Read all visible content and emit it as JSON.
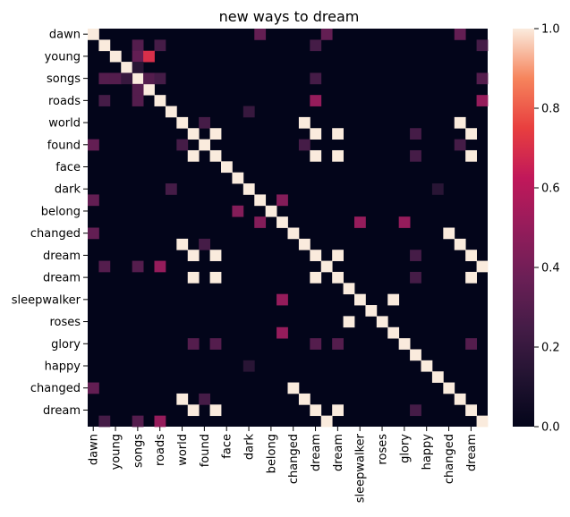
{
  "chart_data": {
    "type": "heatmap",
    "title": "new ways to dream",
    "labels": [
      "dawn",
      "",
      "young",
      "",
      "songs",
      "",
      "roads",
      "",
      "world",
      "",
      "found",
      "",
      "face",
      "",
      "dark",
      "",
      "belong",
      "",
      "changed",
      "",
      "dream",
      "",
      "dream",
      "",
      "sleepwalker",
      "",
      "roses",
      "",
      "glory",
      "",
      "happy",
      "",
      "changed",
      "",
      "dream",
      ""
    ],
    "tick_every": 2,
    "colorbar": {
      "min": 0.0,
      "max": 1.0,
      "ticks": [
        "0.0",
        "0.2",
        "0.4",
        "0.6",
        "0.8",
        "1.0"
      ]
    },
    "colormap": "rocket",
    "diagonal_value": 1.0,
    "cells": [
      [
        0,
        15,
        0.35
      ],
      [
        0,
        21,
        0.35
      ],
      [
        0,
        33,
        0.35
      ],
      [
        1,
        4,
        0.3
      ],
      [
        1,
        6,
        0.25
      ],
      [
        1,
        20,
        0.25
      ],
      [
        1,
        35,
        0.25
      ],
      [
        2,
        4,
        0.35
      ],
      [
        2,
        5,
        0.7
      ],
      [
        3,
        4,
        0.15
      ],
      [
        4,
        1,
        0.3
      ],
      [
        4,
        2,
        0.3
      ],
      [
        4,
        3,
        0.2
      ],
      [
        4,
        5,
        0.3
      ],
      [
        4,
        6,
        0.25
      ],
      [
        4,
        20,
        0.25
      ],
      [
        4,
        35,
        0.3
      ],
      [
        5,
        4,
        0.3
      ],
      [
        6,
        1,
        0.25
      ],
      [
        6,
        4,
        0.3
      ],
      [
        6,
        20,
        0.5
      ],
      [
        6,
        35,
        0.5
      ],
      [
        7,
        14,
        0.2
      ],
      [
        8,
        10,
        0.25
      ],
      [
        8,
        19,
        1.0
      ],
      [
        8,
        33,
        1.0
      ],
      [
        9,
        11,
        1.0
      ],
      [
        9,
        20,
        1.0
      ],
      [
        9,
        22,
        1.0
      ],
      [
        9,
        29,
        0.25
      ],
      [
        9,
        34,
        1.0
      ],
      [
        10,
        0,
        0.35
      ],
      [
        10,
        8,
        0.25
      ],
      [
        10,
        19,
        0.25
      ],
      [
        10,
        33,
        0.25
      ],
      [
        11,
        9,
        1.0
      ],
      [
        11,
        20,
        1.0
      ],
      [
        11,
        22,
        1.0
      ],
      [
        11,
        29,
        0.25
      ],
      [
        11,
        34,
        1.0
      ],
      [
        14,
        7,
        0.25
      ],
      [
        14,
        31,
        0.15
      ],
      [
        15,
        0,
        0.35
      ],
      [
        15,
        17,
        0.45
      ],
      [
        16,
        13,
        0.45
      ],
      [
        17,
        15,
        0.45
      ],
      [
        17,
        24,
        0.5
      ],
      [
        17,
        28,
        0.5
      ],
      [
        18,
        0,
        0.35
      ],
      [
        18,
        32,
        1.0
      ],
      [
        19,
        8,
        1.0
      ],
      [
        19,
        10,
        0.25
      ],
      [
        19,
        33,
        1.0
      ],
      [
        20,
        9,
        1.0
      ],
      [
        20,
        11,
        1.0
      ],
      [
        20,
        22,
        1.0
      ],
      [
        20,
        29,
        0.25
      ],
      [
        20,
        34,
        1.0
      ],
      [
        21,
        1,
        0.3
      ],
      [
        21,
        4,
        0.3
      ],
      [
        21,
        6,
        0.5
      ],
      [
        21,
        35,
        1.0
      ],
      [
        22,
        9,
        1.0
      ],
      [
        22,
        11,
        1.0
      ],
      [
        22,
        20,
        1.0
      ],
      [
        22,
        29,
        0.25
      ],
      [
        22,
        34,
        1.0
      ],
      [
        24,
        17,
        0.5
      ],
      [
        24,
        27,
        1.0
      ],
      [
        26,
        23,
        1.0
      ],
      [
        27,
        17,
        0.5
      ],
      [
        28,
        9,
        0.3
      ],
      [
        28,
        11,
        0.3
      ],
      [
        28,
        20,
        0.3
      ],
      [
        28,
        22,
        0.3
      ],
      [
        28,
        34,
        0.3
      ],
      [
        30,
        14,
        0.15
      ],
      [
        32,
        0,
        0.35
      ],
      [
        32,
        18,
        1.0
      ],
      [
        33,
        8,
        1.0
      ],
      [
        33,
        10,
        0.25
      ],
      [
        33,
        19,
        1.0
      ],
      [
        34,
        9,
        1.0
      ],
      [
        34,
        11,
        1.0
      ],
      [
        34,
        20,
        1.0
      ],
      [
        34,
        22,
        1.0
      ],
      [
        34,
        29,
        0.25
      ],
      [
        35,
        1,
        0.25
      ],
      [
        35,
        4,
        0.3
      ],
      [
        35,
        6,
        0.5
      ],
      [
        35,
        21,
        1.0
      ]
    ]
  }
}
